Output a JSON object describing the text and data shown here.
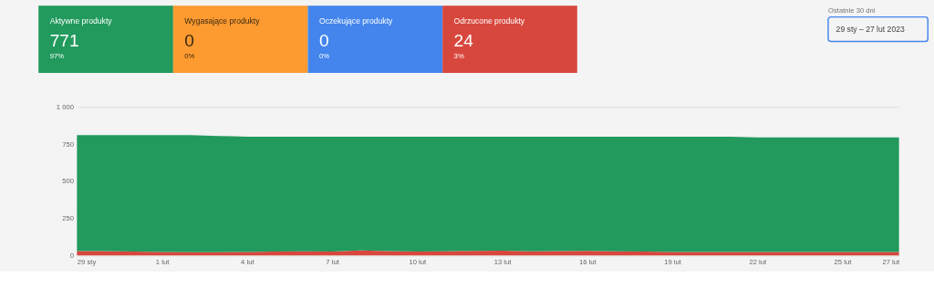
{
  "chart_data": [
    {
      "type": "other",
      "categories": [
        "Aktywne produkty",
        "Wygasające produkty",
        "Oczekujące produkty",
        "Odrzucone produkty"
      ],
      "values": [
        771,
        0,
        0,
        24
      ],
      "colors": [
        "#229a5d",
        "#fd9a30",
        "#4385ed",
        "#d8473d"
      ],
      "data_labels": true,
      "annotations": [
        "97%",
        "0%",
        "0%",
        "3%",
        "Ostatnie 30 dni",
        "29 sty – 27 lut 2023"
      ]
    },
    {
      "type": "area",
      "stacked": true,
      "x": [
        "2023-01-29",
        "2023-01-30",
        "2023-01-31",
        "2023-02-01",
        "2023-02-02",
        "2023-02-03",
        "2023-02-04",
        "2023-02-05",
        "2023-02-06",
        "2023-02-07",
        "2023-02-08",
        "2023-02-09",
        "2023-02-10",
        "2023-02-11",
        "2023-02-12",
        "2023-02-13",
        "2023-02-14",
        "2023-02-15",
        "2023-02-16",
        "2023-02-17",
        "2023-02-18",
        "2023-02-19",
        "2023-02-20",
        "2023-02-21",
        "2023-02-22",
        "2023-02-23",
        "2023-02-24",
        "2023-02-25",
        "2023-02-26",
        "2023-02-27"
      ],
      "series": [
        {
          "color": "#d8473d",
          "values": [
            30,
            30,
            26,
            24,
            22,
            22,
            24,
            26,
            28,
            27,
            35,
            30,
            27,
            28,
            32,
            33,
            29,
            30,
            31,
            28,
            26,
            24,
            24,
            24,
            24,
            24,
            24,
            24,
            24,
            24
          ]
        },
        {
          "color": "#229a5d",
          "values": [
            780,
            780,
            784,
            786,
            788,
            783,
            776,
            774,
            772,
            773,
            765,
            770,
            773,
            772,
            768,
            767,
            771,
            770,
            769,
            772,
            774,
            776,
            776,
            776,
            771,
            771,
            771,
            771,
            771,
            771
          ]
        }
      ],
      "xlim": [
        "2023-01-29",
        "2023-02-27"
      ],
      "xticks": [
        {
          "value": "2023-01-29",
          "label": "29 sty"
        },
        {
          "value": "2023-02-01",
          "label": "1 lut"
        },
        {
          "value": "2023-02-04",
          "label": "4 lut"
        },
        {
          "value": "2023-02-07",
          "label": "7 lut"
        },
        {
          "value": "2023-02-10",
          "label": "10 lut"
        },
        {
          "value": "2023-02-13",
          "label": "13 lut"
        },
        {
          "value": "2023-02-16",
          "label": "16 lut"
        },
        {
          "value": "2023-02-19",
          "label": "19 lut"
        },
        {
          "value": "2023-02-22",
          "label": "22 lut"
        },
        {
          "value": "2023-02-25",
          "label": "25 lut"
        },
        {
          "value": "2023-02-27",
          "label": "27 lut"
        }
      ],
      "ylim": [
        0,
        1000
      ],
      "yticks": [
        0,
        250,
        500,
        750,
        {
          "value": 1000,
          "label": "1 000"
        }
      ],
      "grid": "y"
    }
  ]
}
